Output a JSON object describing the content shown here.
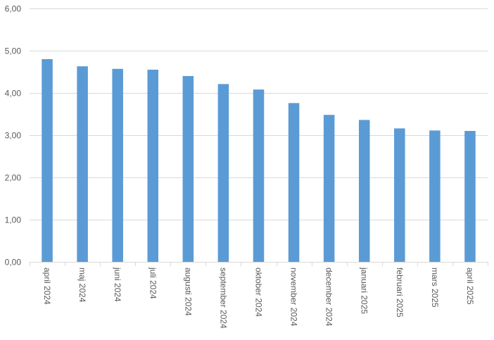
{
  "chart_data": {
    "type": "bar",
    "title": "",
    "xlabel": "",
    "ylabel": "",
    "ylim": [
      0,
      6
    ],
    "yticks": [
      "0,00",
      "1,00",
      "2,00",
      "3,00",
      "4,00",
      "5,00",
      "6,00"
    ],
    "ytick_values": [
      0,
      1,
      2,
      3,
      4,
      5,
      6
    ],
    "grid": true,
    "legend": "none",
    "bar_color": "#5B9BD5",
    "grid_color": "#D9D9D9",
    "categories": [
      "april 2024",
      "maj 2024",
      "juni 2024",
      "juli 2024",
      "augusti 2024",
      "september 2024",
      "oktober 2024",
      "november 2024",
      "december 2024",
      "januari 2025",
      "februari 2025",
      "mars 2025",
      "april 2025"
    ],
    "values": [
      4.8,
      4.63,
      4.57,
      4.55,
      4.4,
      4.21,
      4.08,
      3.76,
      3.48,
      3.36,
      3.16,
      3.11,
      3.1
    ]
  }
}
